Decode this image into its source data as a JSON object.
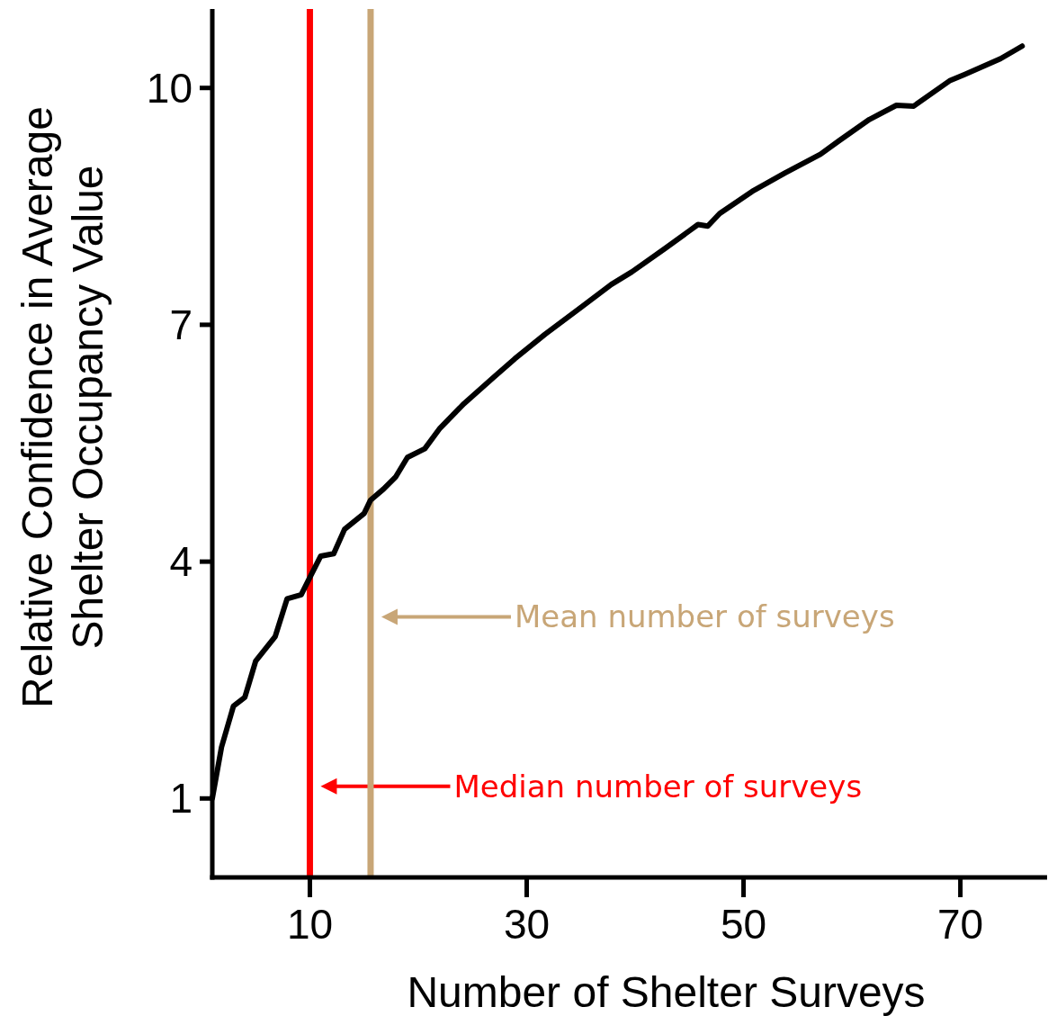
{
  "chart_data": {
    "type": "line",
    "xlabel": "Number of Shelter Surveys",
    "ylabel": "Relative Confidence in Average Shelter Occupancy Value",
    "xlim": [
      1,
      78
    ],
    "xticks": [
      10,
      30,
      50,
      70
    ],
    "ylim": [
      0,
      11
    ],
    "yticks": [
      1,
      4,
      7,
      10
    ],
    "marker": "none",
    "line_style": "solid",
    "series": [
      {
        "color": "#000000",
        "x": [
          1,
          1.85,
          2.95,
          4,
          5,
          6.8,
          7.9,
          9.2,
          10,
          11,
          12.2,
          13.2,
          15,
          15.6,
          16.8,
          17.9,
          19,
          20.6,
          22,
          24.2,
          27,
          28.9,
          31.7,
          35,
          37.8,
          39.7,
          42.8,
          45.8,
          46.7,
          47.8,
          50.8,
          53.8,
          57.1,
          58.8,
          61.6,
          64.1,
          65.7,
          69,
          70.4,
          73.7,
          75.7
        ],
        "values": [
          1,
          1.65,
          2.17,
          2.28,
          2.74,
          3.05,
          3.53,
          3.58,
          3.8,
          4.07,
          4.1,
          4.41,
          4.61,
          4.78,
          4.92,
          5.07,
          5.32,
          5.43,
          5.69,
          6,
          6.34,
          6.57,
          6.88,
          7.22,
          7.51,
          7.67,
          7.97,
          8.27,
          8.25,
          8.41,
          8.69,
          8.92,
          9.16,
          9.33,
          9.6,
          9.78,
          9.77,
          10.09,
          10.17,
          10.37,
          10.53
        ]
      }
    ],
    "ref_lines": [
      {
        "axis": "x",
        "value": 10,
        "label": "Median number of surveys",
        "color": "#ff0000"
      },
      {
        "axis": "x",
        "value": 15.6,
        "label": "Mean number of surveys",
        "color": "#c8a677"
      }
    ]
  }
}
